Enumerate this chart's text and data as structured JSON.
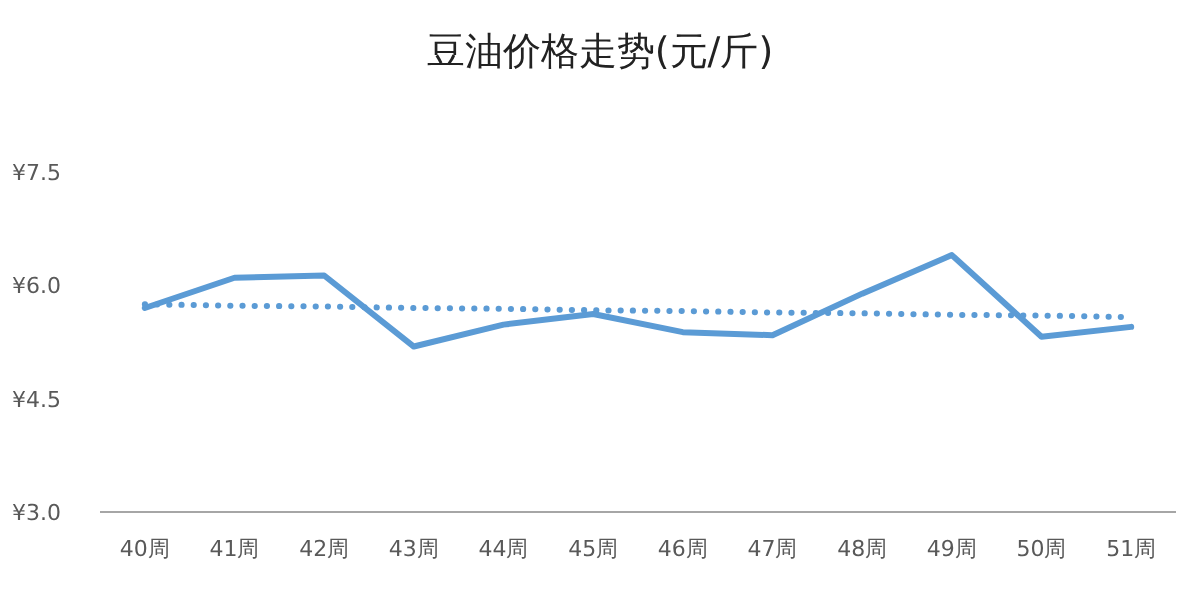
{
  "chart_data": {
    "type": "line",
    "title": "豆油价格走势(元/斤)",
    "categories": [
      "40周",
      "41周",
      "42周",
      "43周",
      "44周",
      "45周",
      "46周",
      "47周",
      "48周",
      "49周",
      "50周",
      "51周"
    ],
    "series": [
      {
        "color": "#5b9bd5",
        "values": [
          5.7,
          6.1,
          6.13,
          5.19,
          5.48,
          5.62,
          5.38,
          5.34,
          5.89,
          6.4,
          5.32,
          5.45
        ]
      },
      {
        "color": "#5b9bd5",
        "line_style": "dotted",
        "values": [
          5.75,
          5.73,
          5.72,
          5.7,
          5.69,
          5.67,
          5.66,
          5.64,
          5.63,
          5.61,
          5.6,
          5.58
        ]
      }
    ],
    "ylim": [
      3.0,
      7.5
    ],
    "yticks": [
      {
        "value": 3.0,
        "label": "¥3.0"
      },
      {
        "value": 4.5,
        "label": "¥4.5"
      },
      {
        "value": 6.0,
        "label": "¥6.0"
      },
      {
        "value": 7.5,
        "label": "¥7.5"
      }
    ],
    "grid": false
  }
}
